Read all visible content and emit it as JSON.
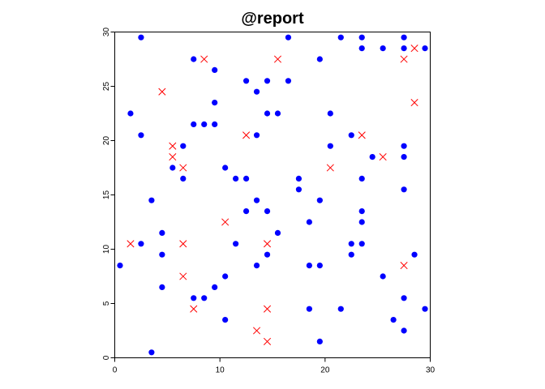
{
  "chart_data": {
    "type": "scatter",
    "title": "@report",
    "xlabel": "",
    "ylabel": "",
    "xlim": [
      0,
      30
    ],
    "ylim": [
      0,
      30
    ],
    "xticks": [
      0,
      10,
      20,
      30
    ],
    "yticks": [
      0,
      5,
      10,
      15,
      20,
      25,
      30
    ],
    "grid": false,
    "legend": "none",
    "series": [
      {
        "marker": "dot",
        "color": "#0000ff",
        "x": [
          2.5,
          1.5,
          2.5,
          0.5,
          2.5,
          3.5,
          3.5,
          4.5,
          4.5,
          4.5,
          5.5,
          6.5,
          6.5,
          7.5,
          7.5,
          7.5,
          8.5,
          8.5,
          9.5,
          9.5,
          9.5,
          9.5,
          10.5,
          10.5,
          10.5,
          11.5,
          11.5,
          12.5,
          12.5,
          12.5,
          13.5,
          13.5,
          13.5,
          13.5,
          14.5,
          14.5,
          14.5,
          14.5,
          15.5,
          15.5,
          16.5,
          16.5,
          17.5,
          17.5,
          18.5,
          18.5,
          18.5,
          19.5,
          19.5,
          19.5,
          19.5,
          20.5,
          20.5,
          21.5,
          21.5,
          22.5,
          22.5,
          22.5,
          23.5,
          23.5,
          23.5,
          23.5,
          23.5,
          23.5,
          24.5,
          25.5,
          25.5,
          26.5,
          27.5,
          27.5,
          27.5,
          27.5,
          27.5,
          27.5,
          27.5,
          28.5,
          29.5,
          29.5
        ],
        "y": [
          29.5,
          22.5,
          20.5,
          8.5,
          10.5,
          14.5,
          0.5,
          11.5,
          9.5,
          6.5,
          17.5,
          19.5,
          16.5,
          27.5,
          21.5,
          5.5,
          21.5,
          5.5,
          26.5,
          23.5,
          21.5,
          6.5,
          17.5,
          7.5,
          3.5,
          16.5,
          10.5,
          25.5,
          16.5,
          13.5,
          24.5,
          20.5,
          14.5,
          8.5,
          25.5,
          22.5,
          13.5,
          9.5,
          22.5,
          11.5,
          29.5,
          25.5,
          16.5,
          15.5,
          12.5,
          8.5,
          4.5,
          27.5,
          14.5,
          8.5,
          1.5,
          22.5,
          19.5,
          29.5,
          4.5,
          20.5,
          10.5,
          9.5,
          29.5,
          28.5,
          16.5,
          13.5,
          12.5,
          10.5,
          18.5,
          28.5,
          7.5,
          3.5,
          29.5,
          19.5,
          18.5,
          15.5,
          5.5,
          2.5,
          28.5,
          9.5,
          28.5,
          4.5
        ]
      },
      {
        "marker": "cross",
        "color": "#ff0000",
        "x": [
          1.5,
          4.5,
          5.5,
          5.5,
          6.5,
          6.5,
          6.5,
          7.5,
          8.5,
          10.5,
          12.5,
          13.5,
          14.5,
          14.5,
          14.5,
          15.5,
          20.5,
          23.5,
          25.5,
          27.5,
          27.5,
          28.5,
          28.5
        ],
        "y": [
          10.5,
          24.5,
          19.5,
          18.5,
          17.5,
          10.5,
          7.5,
          4.5,
          27.5,
          12.5,
          20.5,
          2.5,
          10.5,
          4.5,
          1.5,
          27.5,
          17.5,
          20.5,
          18.5,
          27.5,
          8.5,
          28.5,
          23.5
        ]
      }
    ]
  }
}
